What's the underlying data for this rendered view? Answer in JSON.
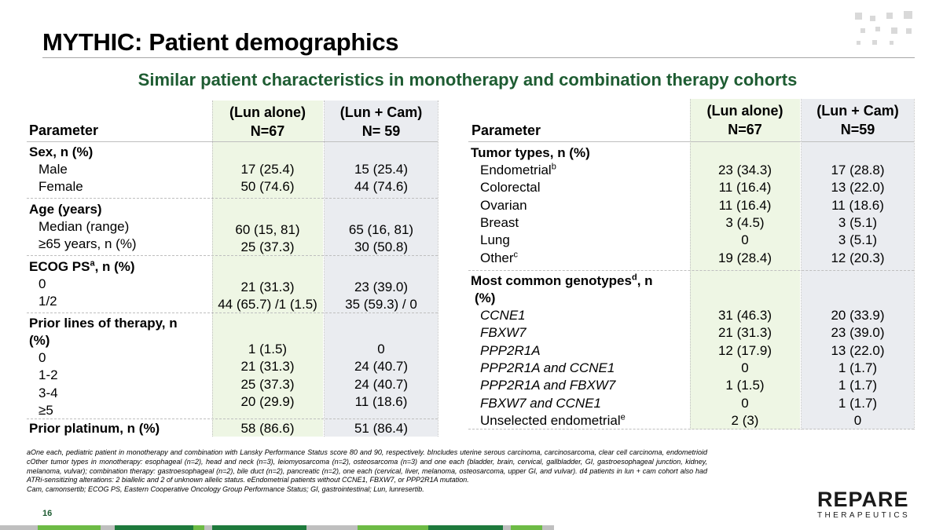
{
  "slide": {
    "title": "MYTHIC: Patient demographics",
    "subtitle": "Similar patient characteristics in monotherapy and combination therapy cohorts",
    "page_number": "16"
  },
  "colors": {
    "green_column": "#eef6e4",
    "gray_column": "#eaecf0",
    "subtitle_green": "#1e5c32",
    "bar_dark_green": "#1e7a3c",
    "bar_light_green": "#6dbb45",
    "bar_gray": "#bfbfbf"
  },
  "left_table": {
    "header": {
      "parameter": "Parameter",
      "col1": "(Lun alone)\nN=67",
      "col2": "(Lun + Cam)\nN= 59"
    },
    "groups": [
      {
        "label": "Sex, n (%)",
        "rows": "Male\nFemale",
        "col1": "17 (25.4)\n50 (74.6)",
        "col2": "15 (25.4)\n44 (74.6)"
      },
      {
        "label": "Age (years)",
        "rows": "Median (range)\n≥65 years, n (%)",
        "col1": "60 (15, 81)\n25 (37.3)",
        "col2": "65 (16, 81)\n30 (50.8)"
      },
      {
        "label": "ECOG PS",
        "label_sup": "a",
        "label_suffix": ", n (%)",
        "rows": "0\n1/2",
        "col1": "21 (31.3)\n44 (65.7) /1 (1.5)",
        "col2": "23 (39.0)\n35 (59.3) / 0"
      },
      {
        "label": "Prior lines of therapy, n\n(%)",
        "rows": "0\n1-2\n3-4\n≥5",
        "col1": "1 (1.5)\n21 (31.3)\n25 (37.3)\n20 (29.9)",
        "col2": "0\n24 (40.7)\n24 (40.7)\n11 (18.6)"
      },
      {
        "label": "Prior platinum, n (%)",
        "col1": "58 (86.6)",
        "col2": "51 (86.4)"
      }
    ]
  },
  "right_table": {
    "header": {
      "parameter": "Parameter",
      "col1": "(Lun alone)\nN=67",
      "col2": "(Lun + Cam)\nN=59"
    },
    "tumor": {
      "label": "Tumor types, n (%)",
      "rows": [
        {
          "name": "Endometrial",
          "sup": "b",
          "col1": "23 (34.3)",
          "col2": "17 (28.8)"
        },
        {
          "name": "Colorectal",
          "sup": "",
          "col1": "11 (16.4)",
          "col2": "13 (22.0)"
        },
        {
          "name": "Ovarian",
          "sup": "",
          "col1": "11 (16.4)",
          "col2": "11 (18.6)"
        },
        {
          "name": "Breast",
          "sup": "",
          "col1": "3 (4.5)",
          "col2": "3 (5.1)"
        },
        {
          "name": "Lung",
          "sup": "",
          "col1": "0",
          "col2": "3 (5.1)"
        },
        {
          "name": "Other",
          "sup": "c",
          "col1": "19 (28.4)",
          "col2": "12 (20.3)"
        }
      ]
    },
    "genotypes": {
      "label": "Most common genotypes",
      "label_sup": "d",
      "label_suffix": ", n",
      "label_line2": "(%)",
      "rows": [
        {
          "name": "CCNE1",
          "sup": "",
          "italic": true,
          "col1": "31 (46.3)",
          "col2": "20 (33.9)"
        },
        {
          "name": "FBXW7",
          "sup": "",
          "italic": true,
          "col1": "21 (31.3)",
          "col2": "23 (39.0)"
        },
        {
          "name": "PPP2R1A",
          "sup": "",
          "italic": true,
          "col1": "12 (17.9)",
          "col2": "13 (22.0)"
        },
        {
          "name": "PPP2R1A and CCNE1",
          "sup": "",
          "italic": true,
          "col1": "0",
          "col2": "1 (1.7)"
        },
        {
          "name": "PPP2R1A and FBXW7",
          "sup": "",
          "italic": true,
          "col1": "1 (1.5)",
          "col2": "1 (1.7)"
        },
        {
          "name": "FBXW7 and CCNE1",
          "sup": "",
          "italic": true,
          "col1": "0",
          "col2": "1 (1.7)"
        },
        {
          "name": "Unselected endometrial",
          "sup": "e",
          "italic": false,
          "col1": "2 (3)",
          "col2": "0"
        }
      ]
    }
  },
  "footnotes": {
    "line1": "aOne each, pediatric patient in monotherapy and combination with Lansky Performance Status score 80 and 90, respectively. bIncludes uterine serous carcinoma, carcinosarcoma, clear cell carcinoma, endometrioid cOther tumor types in monotherapy: esophageal (n=2), head and neck (n=3), leiomyosarcoma (n=2), osteosarcoma (n=3) and one each (bladder, brain, cervical, gallbladder, GI, gastroesophageal junction, kidney, melanoma, vulvar); combination therapy: gastroesophageal (n=2), bile duct (n=2), pancreatic (n=2), one each (cervical, liver, melanoma, osteosarcoma, upper GI, and vulvar). d4 patients in lun + cam cohort also had ATRi-sensitizing alterations: 2 biallelic and 2 of unknown allelic status. eEndometrial patients without CCNE1, FBXW7, or PPP2R1A mutation.",
    "line2": "Cam, camonsertib; ECOG PS, Eastern Cooperative Oncology Group Performance Status; GI, gastrointestinal; Lun, lunresertib."
  },
  "logo": {
    "main": "REPARE",
    "sub": "THERAPEUTICS"
  }
}
